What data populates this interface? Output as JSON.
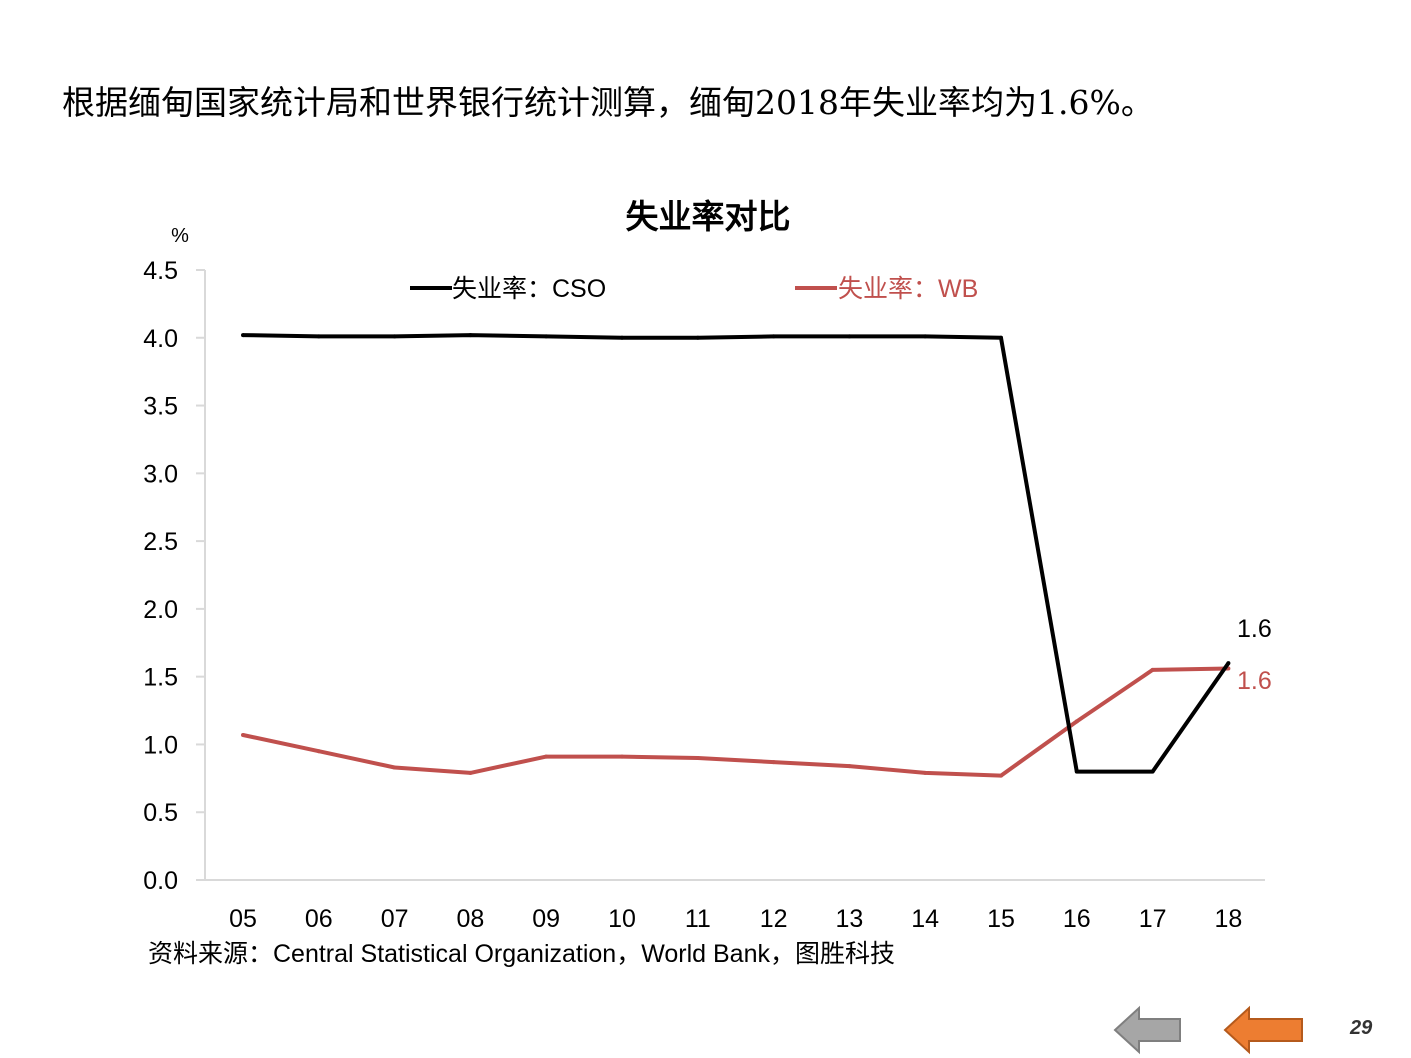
{
  "slide": {
    "headline": "根据缅甸国家统计局和世界银行统计测算，缅甸2018年失业率均为1.6%。",
    "source": "资料来源：Central Statistical Organization，World Bank，图胜科技",
    "page_number": "29",
    "nav": {
      "prev_color": "#A6A6A6",
      "next_color": "#ED7D31"
    }
  },
  "chart_data": {
    "type": "line",
    "title": "失业率对比",
    "ylabel": "%",
    "xlabel": "",
    "ylim": [
      0,
      4.5
    ],
    "ytick_labels": [
      "0.0",
      "0.5",
      "1.0",
      "1.5",
      "2.0",
      "2.5",
      "3.0",
      "3.5",
      "4.0",
      "4.5"
    ],
    "categories": [
      "05",
      "06",
      "07",
      "08",
      "09",
      "10",
      "11",
      "12",
      "13",
      "14",
      "15",
      "16",
      "17",
      "18"
    ],
    "legend_position": "top",
    "grid": false,
    "series": [
      {
        "name": "失业率：CSO",
        "color": "#000000",
        "values": [
          4.02,
          4.01,
          4.01,
          4.02,
          4.01,
          4.0,
          4.0,
          4.01,
          4.01,
          4.01,
          4.0,
          0.8,
          0.8,
          1.6
        ],
        "end_label": "1.6"
      },
      {
        "name": "失业率：WB",
        "color": "#C0504D",
        "values": [
          1.07,
          0.95,
          0.83,
          0.79,
          0.91,
          0.91,
          0.9,
          0.87,
          0.84,
          0.79,
          0.77,
          1.17,
          1.55,
          1.56
        ],
        "end_label": "1.6"
      }
    ]
  }
}
